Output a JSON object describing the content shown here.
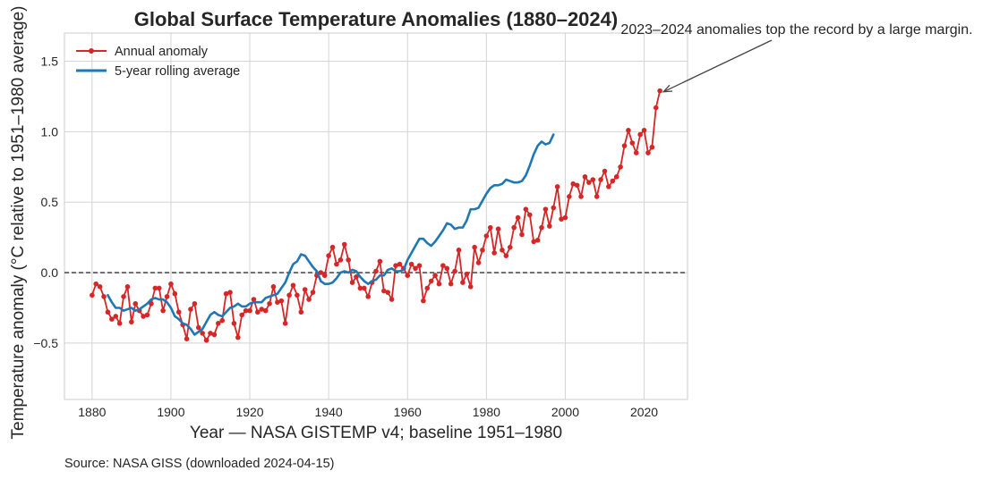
{
  "chart_data": {
    "type": "line",
    "title": "Global Surface Temperature Anomalies (1880–2024)",
    "xlabel": "Year — NASA GISTEMP v4; baseline 1951–1980",
    "ylabel": "Temperature anomaly (°C relative to 1951–1980 average)",
    "xlim": [
      1873,
      2031
    ],
    "ylim": [
      -0.9,
      1.7
    ],
    "x_ticks": [
      1880,
      1900,
      1920,
      1940,
      1960,
      1980,
      2000,
      2020
    ],
    "y_ticks": [
      -0.5,
      0.0,
      0.5,
      1.0,
      1.5
    ],
    "y_tick_labels": [
      "−0.5",
      "0.0",
      "0.5",
      "1.0",
      "1.5"
    ],
    "grid": true,
    "legend_position": "top-left",
    "reference_line": {
      "y": 0.0,
      "style": "dashed",
      "color": "#333333"
    },
    "series": [
      {
        "name": "Annual anomaly",
        "color": "#d62728",
        "marker": "circle",
        "x_start": 1880,
        "values": [
          -0.16,
          -0.08,
          -0.1,
          -0.17,
          -0.28,
          -0.33,
          -0.31,
          -0.36,
          -0.17,
          -0.1,
          -0.35,
          -0.22,
          -0.27,
          -0.31,
          -0.3,
          -0.22,
          -0.11,
          -0.11,
          -0.27,
          -0.17,
          -0.08,
          -0.15,
          -0.28,
          -0.37,
          -0.47,
          -0.26,
          -0.22,
          -0.39,
          -0.43,
          -0.48,
          -0.43,
          -0.44,
          -0.36,
          -0.34,
          -0.15,
          -0.14,
          -0.36,
          -0.46,
          -0.3,
          -0.27,
          -0.27,
          -0.19,
          -0.28,
          -0.26,
          -0.27,
          -0.22,
          -0.1,
          -0.21,
          -0.2,
          -0.36,
          -0.16,
          -0.09,
          -0.16,
          -0.28,
          -0.12,
          -0.19,
          -0.14,
          -0.02,
          -0.0,
          -0.02,
          0.12,
          0.18,
          0.06,
          0.09,
          0.2,
          0.09,
          -0.07,
          -0.03,
          -0.11,
          -0.11,
          -0.17,
          -0.07,
          0.01,
          0.08,
          -0.13,
          -0.14,
          -0.19,
          0.05,
          0.06,
          0.03,
          -0.02,
          0.06,
          0.03,
          0.05,
          -0.2,
          -0.11,
          -0.06,
          -0.02,
          -0.08,
          0.05,
          0.03,
          -0.08,
          0.01,
          0.16,
          -0.07,
          -0.01,
          -0.1,
          0.18,
          0.07,
          0.16,
          0.26,
          0.32,
          0.14,
          0.31,
          0.16,
          0.12,
          0.18,
          0.32,
          0.39,
          0.27,
          0.45,
          0.41,
          0.22,
          0.23,
          0.32,
          0.45,
          0.33,
          0.46,
          0.61,
          0.38,
          0.39,
          0.54,
          0.63,
          0.62,
          0.54,
          0.68,
          0.64,
          0.66,
          0.54,
          0.66,
          0.72,
          0.61,
          0.65,
          0.68,
          0.75,
          0.9,
          1.01,
          0.92,
          0.85,
          0.98,
          1.01,
          0.85,
          0.89,
          1.17,
          1.29
        ]
      },
      {
        "name": "5-year rolling average",
        "color": "#1f77b4",
        "x_start": 1884,
        "values": [
          -0.16,
          -0.21,
          -0.25,
          -0.25,
          -0.27,
          -0.26,
          -0.25,
          -0.27,
          -0.26,
          -0.24,
          -0.22,
          -0.19,
          -0.18,
          -0.19,
          -0.19,
          -0.21,
          -0.25,
          -0.31,
          -0.33,
          -0.36,
          -0.37,
          -0.4,
          -0.44,
          -0.42,
          -0.4,
          -0.35,
          -0.3,
          -0.28,
          -0.3,
          -0.31,
          -0.28,
          -0.25,
          -0.24,
          -0.22,
          -0.24,
          -0.24,
          -0.22,
          -0.21,
          -0.21,
          -0.21,
          -0.18,
          -0.17,
          -0.16,
          -0.15,
          -0.11,
          -0.07,
          0.0,
          0.06,
          0.08,
          0.13,
          0.12,
          0.08,
          0.04,
          0.01,
          -0.06,
          -0.08,
          -0.08,
          -0.07,
          -0.04,
          0.0,
          0.01,
          0.0,
          0.02,
          0.01,
          -0.03,
          -0.06,
          -0.08,
          -0.06,
          -0.05,
          -0.02,
          -0.02,
          0.02,
          0.03,
          0.01,
          0.01,
          0.02,
          0.09,
          0.14,
          0.19,
          0.24,
          0.24,
          0.21,
          0.19,
          0.22,
          0.26,
          0.3,
          0.35,
          0.34,
          0.31,
          0.32,
          0.32,
          0.37,
          0.45,
          0.45,
          0.46,
          0.51,
          0.56,
          0.6,
          0.62,
          0.62,
          0.63,
          0.66,
          0.65,
          0.64,
          0.64,
          0.65,
          0.69,
          0.76,
          0.84,
          0.9,
          0.93,
          0.91,
          0.92,
          0.98
        ]
      }
    ],
    "annotation": {
      "text": "2023–2024 anomalies top the record by a large margin.",
      "points_to": {
        "x": 2024,
        "y": 1.29
      }
    }
  },
  "source": "Source: NASA GISS (downloaded 2024-04-15)"
}
